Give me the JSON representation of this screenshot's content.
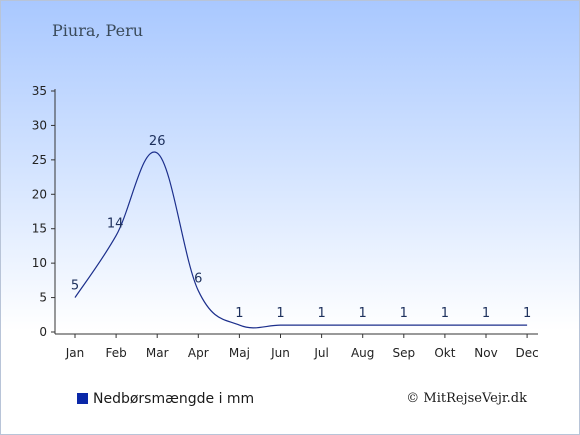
{
  "header": {
    "location": "Piura, Peru"
  },
  "legend": {
    "label": "Nedbørsmængde i mm"
  },
  "credit": "© MitRejseVejr.dk",
  "colors": {
    "line": "#1c2f8c",
    "axis": "#333333",
    "label": "#1c2f5c"
  },
  "chart_data": {
    "type": "line",
    "categories": [
      "Jan",
      "Feb",
      "Mar",
      "Apr",
      "Maj",
      "Jun",
      "Jul",
      "Aug",
      "Sep",
      "Okt",
      "Nov",
      "Dec"
    ],
    "values": [
      5,
      14,
      26,
      6,
      1,
      1,
      1,
      1,
      1,
      1,
      1,
      1
    ],
    "data_labels": [
      "5",
      "14",
      "26",
      "6",
      "1",
      "1",
      "1",
      "1",
      "1",
      "1",
      "1",
      "1"
    ],
    "yticks": [
      0,
      5,
      10,
      15,
      20,
      25,
      30,
      35
    ],
    "ylim": [
      0,
      35
    ],
    "grid": false,
    "legend_position": "bottom-left"
  }
}
